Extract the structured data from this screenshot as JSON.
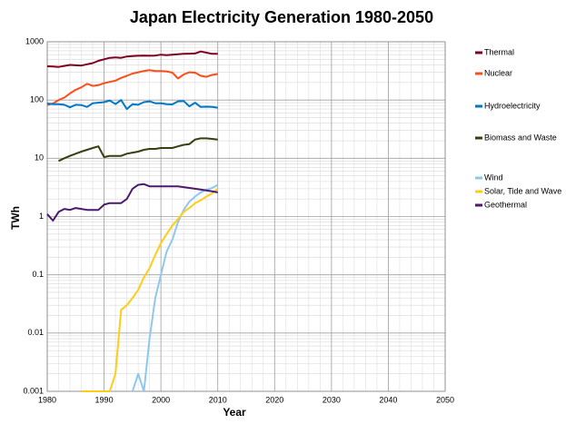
{
  "chart_data": {
    "type": "line",
    "title": "Japan Electricity Generation 1980-2050",
    "x_label": "Year",
    "y_label": "TWh",
    "log_y": true,
    "grid": true,
    "x": [
      1980,
      1981,
      1982,
      1983,
      1984,
      1985,
      1986,
      1987,
      1988,
      1989,
      1990,
      1991,
      1992,
      1993,
      1994,
      1995,
      1996,
      1997,
      1998,
      1999,
      2000,
      2001,
      2002,
      2003,
      2004,
      2005,
      2006,
      2007,
      2008,
      2009,
      2010
    ],
    "xlim": [
      1980,
      2050
    ],
    "xticks": [
      1980,
      1990,
      2000,
      2010,
      2020,
      2030,
      2040,
      2050
    ],
    "ylim": [
      0.001,
      1000
    ],
    "yticks": [
      0.001,
      0.01,
      0.1,
      1,
      10,
      100,
      1000
    ],
    "series": [
      {
        "name": "Thermal",
        "color": "#800020",
        "values": [
          380,
          375,
          370,
          385,
          400,
          395,
          390,
          410,
          430,
          470,
          500,
          530,
          540,
          530,
          560,
          570,
          575,
          580,
          575,
          580,
          600,
          590,
          600,
          610,
          620,
          625,
          630,
          680,
          650,
          620,
          620
        ]
      },
      {
        "name": "Nuclear",
        "color": "#ff4d1a",
        "values": [
          82,
          87,
          100,
          110,
          130,
          150,
          165,
          190,
          175,
          180,
          195,
          205,
          215,
          240,
          260,
          285,
          300,
          315,
          325,
          315,
          315,
          310,
          295,
          235,
          275,
          300,
          295,
          260,
          250,
          270,
          280
        ]
      },
      {
        "name": "Hydroelectricity",
        "color": "#0077c8",
        "values": [
          87,
          85,
          85,
          83,
          75,
          83,
          82,
          76,
          88,
          90,
          92,
          98,
          85,
          100,
          70,
          85,
          83,
          92,
          95,
          88,
          88,
          85,
          84,
          95,
          96,
          78,
          90,
          76,
          77,
          76,
          74
        ]
      },
      {
        "name": "Biomass and Waste",
        "color": "#334010",
        "values": [
          null,
          null,
          9,
          10,
          11,
          12,
          13,
          14,
          15,
          16,
          10.5,
          11,
          11,
          11,
          12,
          12.5,
          13,
          14,
          14.5,
          14.5,
          15,
          15,
          15,
          16,
          17,
          17.5,
          21,
          22,
          22,
          21.5,
          21
        ]
      },
      {
        "name": "Wind",
        "color": "#8ec8ee",
        "values": [
          null,
          null,
          null,
          null,
          null,
          null,
          null,
          null,
          null,
          null,
          null,
          null,
          null,
          null,
          null,
          0.001,
          0.002,
          0.001,
          0.008,
          0.04,
          0.1,
          0.25,
          0.4,
          0.8,
          1.3,
          1.8,
          2.2,
          2.6,
          2.9,
          3.1,
          3.5
        ]
      },
      {
        "name": "Solar, Tide and Wave",
        "color": "#ffcc1a",
        "values": [
          null,
          null,
          null,
          null,
          null,
          null,
          0.001,
          0.001,
          0.001,
          0.001,
          0.001,
          0.001,
          0.002,
          0.025,
          0.03,
          0.04,
          0.055,
          0.09,
          0.13,
          0.22,
          0.35,
          0.5,
          0.7,
          0.9,
          1.2,
          1.4,
          1.7,
          1.9,
          2.2,
          2.5,
          3.0
        ]
      },
      {
        "name": "Geothermal",
        "color": "#4b1a6e",
        "values": [
          1.1,
          0.85,
          1.2,
          1.35,
          1.3,
          1.4,
          1.35,
          1.3,
          1.3,
          1.3,
          1.6,
          1.7,
          1.7,
          1.7,
          2.0,
          3.0,
          3.5,
          3.6,
          3.3,
          3.3,
          3.3,
          3.3,
          3.3,
          3.3,
          3.2,
          3.1,
          3.0,
          2.9,
          2.8,
          2.7,
          2.6
        ]
      }
    ]
  }
}
